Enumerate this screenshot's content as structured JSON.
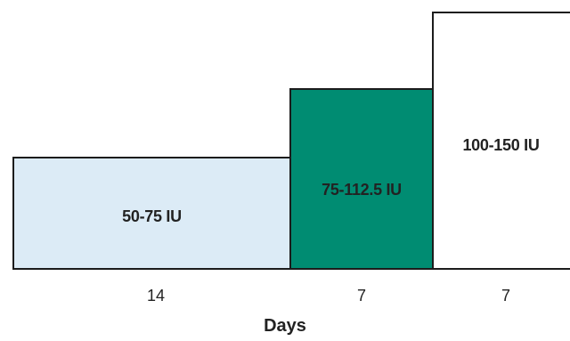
{
  "steps": [
    {
      "label": "50-75 IU",
      "days": "14",
      "fill": "#dcebf6"
    },
    {
      "label": "75-112.5 IU",
      "days": "7",
      "fill": "#008c72"
    },
    {
      "label": "100-150 IU",
      "days": "7",
      "fill": "#ffffff"
    }
  ],
  "axis": {
    "title": "Days"
  }
}
